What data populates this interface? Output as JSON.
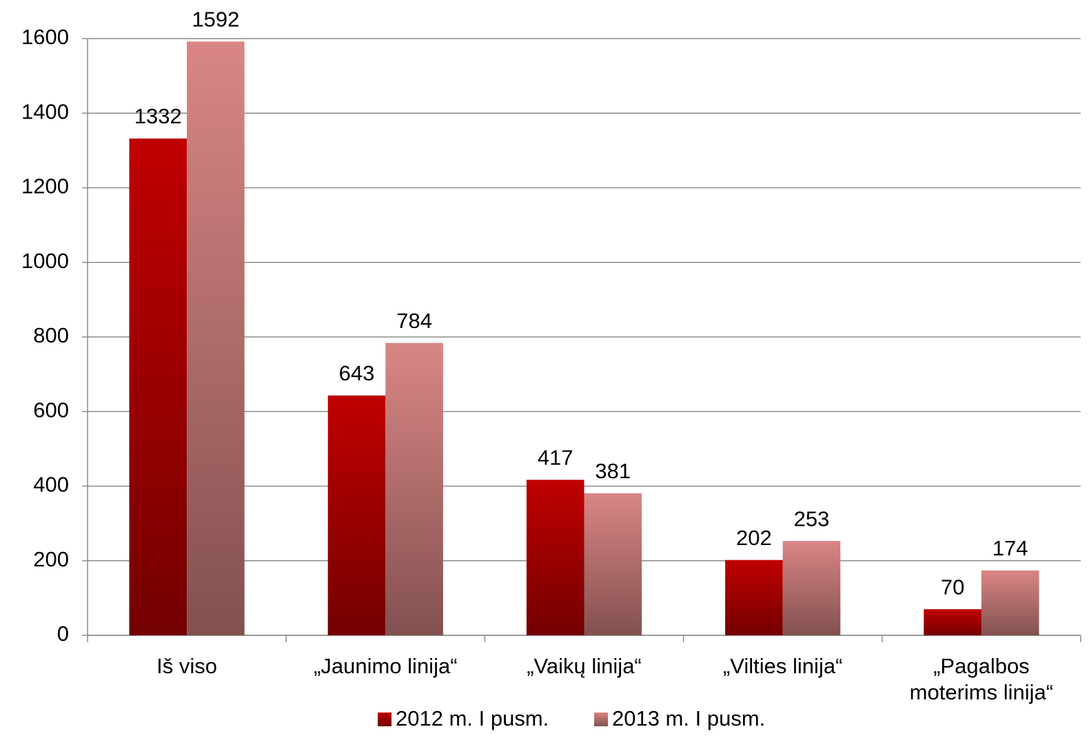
{
  "chart_data": {
    "type": "bar",
    "categories": [
      "Iš viso",
      "„Jaunimo linija“",
      "„Vaikų linija“",
      "„Vilties linija“",
      "„Pagalbos moterims linija“"
    ],
    "series": [
      {
        "name": "2012 m. I pusm.",
        "color": "#c00000",
        "values": [
          1332,
          643,
          417,
          202,
          70
        ]
      },
      {
        "name": "2013 m. I pusm.",
        "color": "#d98684",
        "values": [
          1592,
          784,
          381,
          253,
          174
        ]
      }
    ],
    "ylim": [
      0,
      1600
    ],
    "yticks": [
      0,
      200,
      400,
      600,
      800,
      1000,
      1200,
      1400,
      1600
    ],
    "grid": true,
    "legend": "bottom"
  }
}
